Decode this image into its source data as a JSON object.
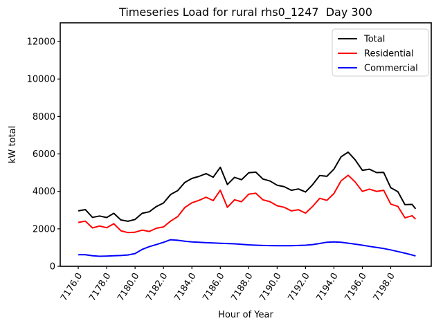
{
  "chart_data": {
    "type": "line",
    "title": "Timeseries Load for rural rhs0_1247  Day 300",
    "xlabel": "Hour of Year",
    "ylabel": "kW total",
    "xlim": [
      7174.73,
      7200.85
    ],
    "ylim": [
      0,
      13000
    ],
    "grid": false,
    "legend_position": "upper right",
    "xticks": [
      7176,
      7178,
      7180,
      7182,
      7184,
      7186,
      7188,
      7190,
      7192,
      7194,
      7196,
      7198
    ],
    "xtick_labels": [
      "7176.0",
      "7178.0",
      "7180.0",
      "7182.0",
      "7184.0",
      "7186.0",
      "7188.0",
      "7190.0",
      "7192.0",
      "7194.0",
      "7196.0",
      "7198.0"
    ],
    "yticks": [
      0,
      2000,
      4000,
      6000,
      8000,
      10000,
      12000
    ],
    "ytick_labels": [
      "0",
      "2000",
      "4000",
      "6000",
      "8000",
      "10000",
      "12000"
    ],
    "x": [
      7176,
      7176.5,
      7177,
      7177.5,
      7178,
      7178.5,
      7179,
      7179.5,
      7180,
      7180.5,
      7181,
      7181.5,
      7182,
      7182.5,
      7183,
      7183.5,
      7184,
      7184.5,
      7185,
      7185.5,
      7186,
      7186.5,
      7187,
      7187.5,
      7188,
      7188.5,
      7189,
      7189.5,
      7190,
      7190.5,
      7191,
      7191.5,
      7192,
      7192.5,
      7193,
      7193.5,
      7194,
      7194.5,
      7195,
      7195.5,
      7196,
      7196.5,
      7197,
      7197.5,
      7198,
      7198.5,
      7199,
      7199.5,
      7199.75
    ],
    "series": [
      {
        "name": "Total",
        "color": "#000000",
        "values": [
          2960,
          3030,
          2610,
          2685,
          2605,
          2830,
          2475,
          2405,
          2500,
          2830,
          2910,
          3190,
          3380,
          3830,
          4040,
          4480,
          4690,
          4800,
          4950,
          4755,
          5290,
          4365,
          4750,
          4625,
          4995,
          5025,
          4660,
          4555,
          4330,
          4250,
          4060,
          4130,
          3965,
          4360,
          4850,
          4805,
          5185,
          5845,
          6095,
          5680,
          5125,
          5185,
          5005,
          5010,
          4195,
          3985,
          3290,
          3305,
          3070
        ]
      },
      {
        "name": "Residential",
        "color": "#ff0000",
        "values": [
          2340,
          2410,
          2050,
          2150,
          2060,
          2270,
          1900,
          1800,
          1820,
          1930,
          1860,
          2030,
          2100,
          2410,
          2650,
          3140,
          3390,
          3520,
          3690,
          3510,
          4060,
          3150,
          3550,
          3450,
          3850,
          3900,
          3550,
          3450,
          3230,
          3150,
          2960,
          3020,
          2840,
          3200,
          3630,
          3520,
          3880,
          4560,
          4860,
          4500,
          4000,
          4120,
          4000,
          4060,
          3320,
          3200,
          2590,
          2700,
          2520
        ]
      },
      {
        "name": "Commercial",
        "color": "#0000ff",
        "values": [
          620,
          620,
          560,
          535,
          545,
          560,
          575,
          605,
          680,
          900,
          1050,
          1160,
          1280,
          1420,
          1390,
          1340,
          1300,
          1280,
          1260,
          1245,
          1230,
          1215,
          1200,
          1175,
          1145,
          1125,
          1110,
          1105,
          1100,
          1100,
          1100,
          1110,
          1125,
          1160,
          1220,
          1285,
          1305,
          1285,
          1235,
          1180,
          1125,
          1065,
          1005,
          950,
          875,
          785,
          700,
          605,
          550
        ]
      }
    ]
  }
}
